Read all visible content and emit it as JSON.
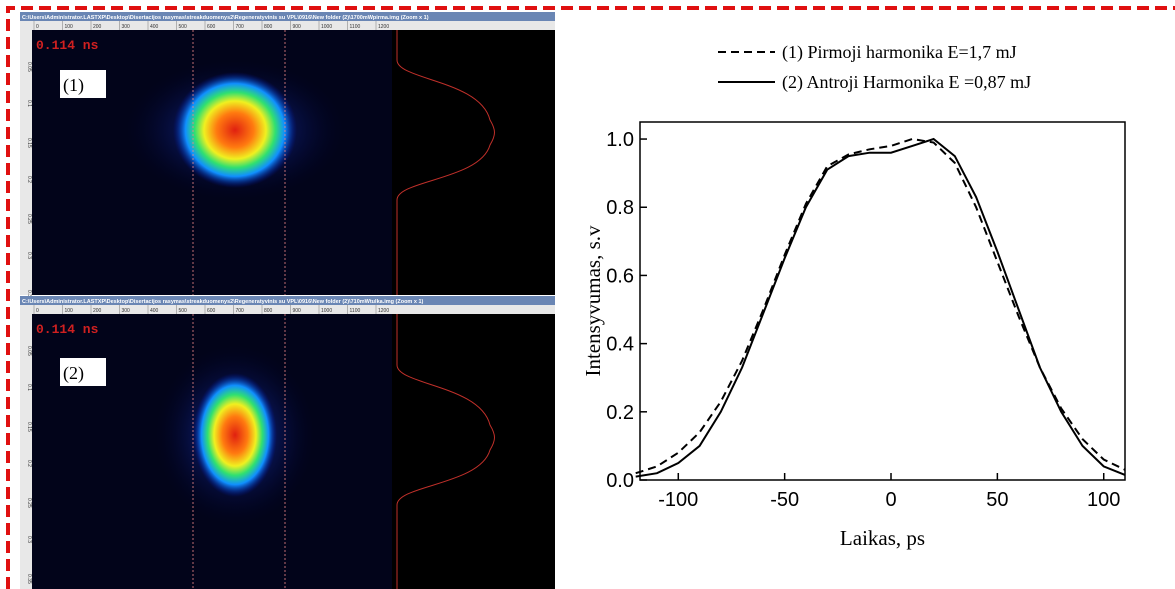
{
  "panels": [
    {
      "title_bar": "C:\\Users\\Administrator.LASTXP\\Desktop\\Disertacijos rasymas\\streakduomenys2\\Regeneratyvinis su VPL\\0916\\New folder (2)\\1700mWpirma.img (Zoom x 1)",
      "time_label": "0.114 ns",
      "tag": "(1)"
    },
    {
      "title_bar": "C:\\Users\\Administrator.LASTXP\\Desktop\\Disertacijos rasymas\\streakduomenys2\\Regeneratyvinis su VPL\\0916\\New folder (2)\\710mWtulka.img (Zoom x 1)",
      "time_label": "0.114 ns",
      "tag": "(2)"
    }
  ],
  "ruler_top": [
    "0",
    "100",
    "200",
    "300",
    "400",
    "500",
    "600",
    "700",
    "800",
    "900",
    "1000",
    "1100",
    "1200"
  ],
  "ruler_left": [
    "0.05",
    "0.1",
    "0.15",
    "0.2",
    "0.25",
    "0.3",
    "0.35"
  ],
  "chart_data": {
    "type": "line",
    "x_label": "Laikas, ps",
    "y_label": "Intensyvumas, s.v",
    "x": [
      -120,
      -110,
      -100,
      -90,
      -80,
      -70,
      -60,
      -50,
      -40,
      -30,
      -20,
      -10,
      0,
      10,
      20,
      30,
      40,
      50,
      60,
      70,
      80,
      90,
      100,
      110
    ],
    "series": [
      {
        "name": "(1) Pirmoji harmonika E=1,7 mJ",
        "color": "#000000",
        "dash": true,
        "values": [
          0.02,
          0.04,
          0.08,
          0.14,
          0.23,
          0.35,
          0.5,
          0.66,
          0.81,
          0.92,
          0.955,
          0.97,
          0.98,
          1.0,
          0.99,
          0.93,
          0.8,
          0.64,
          0.48,
          0.33,
          0.21,
          0.12,
          0.06,
          0.03
        ]
      },
      {
        "name": "(2) Antroji Harmonika E =0,87 mJ",
        "color": "#000000",
        "dash": false,
        "values": [
          0.01,
          0.02,
          0.05,
          0.1,
          0.2,
          0.33,
          0.49,
          0.65,
          0.8,
          0.91,
          0.95,
          0.96,
          0.96,
          0.98,
          1.0,
          0.95,
          0.83,
          0.67,
          0.5,
          0.33,
          0.2,
          0.1,
          0.04,
          0.015
        ]
      }
    ],
    "xlim": [
      -118,
      110
    ],
    "ylim": [
      0,
      1.05
    ],
    "xticks": [
      -100,
      -50,
      0,
      50,
      100
    ],
    "yticks": [
      {
        "value": 0,
        "label": "0.0"
      },
      {
        "value": 0.2,
        "label": "0.2"
      },
      {
        "value": 0.4,
        "label": "0.4"
      },
      {
        "value": 0.6,
        "label": "0.6"
      },
      {
        "value": 0.8,
        "label": "0.8"
      },
      {
        "value": 1,
        "label": "1.0"
      }
    ]
  }
}
